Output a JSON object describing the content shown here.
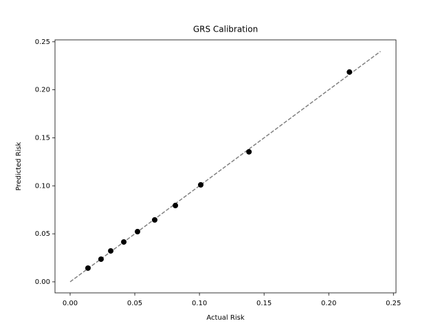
{
  "chart_data": {
    "type": "scatter",
    "title": "GRS Calibration",
    "x_label": "Actual Risk",
    "y_label": "Predicted Risk",
    "x": [
      0.0138,
      0.0239,
      0.0314,
      0.0415,
      0.0521,
      0.0654,
      0.0814,
      0.101,
      0.1383,
      0.216
    ],
    "y": [
      0.0143,
      0.0236,
      0.0322,
      0.0415,
      0.0523,
      0.0645,
      0.0795,
      0.101,
      0.1354,
      0.2185
    ],
    "color": "#000000",
    "reference_line": {
      "x": [
        0,
        0.24
      ],
      "y": [
        0,
        0.24
      ],
      "color": "#808080",
      "style": "dashed"
    },
    "xlim": [
      -0.0117,
      0.252
    ],
    "ylim": [
      -0.0115,
      0.252
    ],
    "xticks": [
      {
        "value": 0,
        "label": "0.00"
      },
      {
        "value": 0.05,
        "label": "0.05"
      },
      {
        "value": 0.1,
        "label": "0.10"
      },
      {
        "value": 0.15,
        "label": "0.15"
      },
      {
        "value": 0.2,
        "label": "0.20"
      },
      {
        "value": 0.25,
        "label": "0.25"
      }
    ],
    "yticks": [
      {
        "value": 0,
        "label": "0.00"
      },
      {
        "value": 0.05,
        "label": "0.05"
      },
      {
        "value": 0.1,
        "label": "0.10"
      },
      {
        "value": 0.15,
        "label": "0.15"
      },
      {
        "value": 0.2,
        "label": "0.20"
      },
      {
        "value": 0.25,
        "label": "0.25"
      }
    ],
    "grid": false
  }
}
